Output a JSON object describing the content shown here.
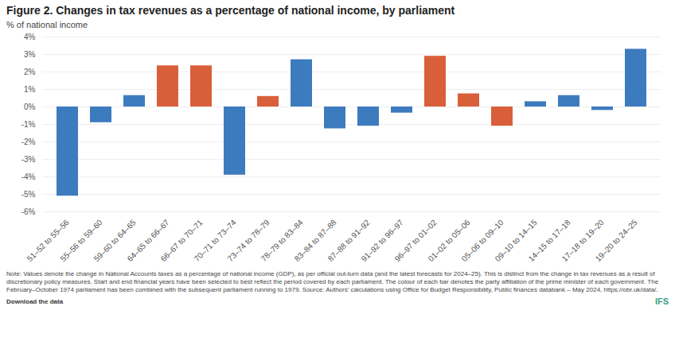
{
  "chart_data": {
    "type": "bar",
    "title": "Figure 2. Changes in tax revenues as a percentage of national income, by parliament",
    "ylabel": "% of national income",
    "categories": [
      "51–52 to 55–56",
      "55–56 to 59–60",
      "59–60 to 64–65",
      "64–65 to 66–67",
      "66–67 to 70–71",
      "70–71 to 73–74",
      "73–74 to 78–79",
      "78–79 to 83–84",
      "83–84 to 87–88",
      "87–88 to 91–92",
      "91–92 to 96–97",
      "96–97 to 01–02",
      "01–02 to 05–06",
      "05–06 to 09–10",
      "09–10 to 14–15",
      "14–15 to 17–18",
      "17–18 to 19–20",
      "19–20 to 24–25"
    ],
    "values": [
      -5.1,
      -0.9,
      0.65,
      2.35,
      2.35,
      -3.9,
      0.6,
      2.7,
      -1.25,
      -1.1,
      -0.35,
      2.9,
      0.75,
      -1.1,
      0.3,
      0.65,
      -0.2,
      3.3
    ],
    "colors": [
      "#3d7bbf",
      "#3d7bbf",
      "#3d7bbf",
      "#d95f3b",
      "#d95f3b",
      "#3d7bbf",
      "#d95f3b",
      "#3d7bbf",
      "#3d7bbf",
      "#3d7bbf",
      "#3d7bbf",
      "#d95f3b",
      "#d95f3b",
      "#d95f3b",
      "#3d7bbf",
      "#3d7bbf",
      "#3d7bbf",
      "#3d7bbf"
    ],
    "ylim": [
      -6,
      4
    ],
    "yticks": [
      {
        "value": -6,
        "label": "-6%"
      },
      {
        "value": -5,
        "label": "-5%"
      },
      {
        "value": -4,
        "label": "-4%"
      },
      {
        "value": -3,
        "label": "-3%"
      },
      {
        "value": -2,
        "label": "-2%"
      },
      {
        "value": -1,
        "label": "-1%"
      },
      {
        "value": 0,
        "label": "0%"
      },
      {
        "value": 1,
        "label": "1%"
      },
      {
        "value": 2,
        "label": "2%"
      },
      {
        "value": 3,
        "label": "3%"
      },
      {
        "value": 4,
        "label": "4%"
      }
    ],
    "grid": true,
    "annotations": [
      "Note: Values denote the change in National Accounts taxes as a percentage of national income (GDP), as per official out-turn data (and the latest forecasts for 2024–25). This is distinct from the change in tax revenues as a result of discretionary policy measures. Start and end financial years have been selected to best reflect the period covered by each parliament. The colour of each bar denotes the party affiliation of the prime minister of each government. The February–October 1974 parliament has been combined with the subsequent parliament running to 1979. Source: Authors’ calculations using Office for Budget Responsibility, Public finances databank – May 2024, https://obr.uk/data/.",
      "Download the data",
      "IFS"
    ]
  }
}
